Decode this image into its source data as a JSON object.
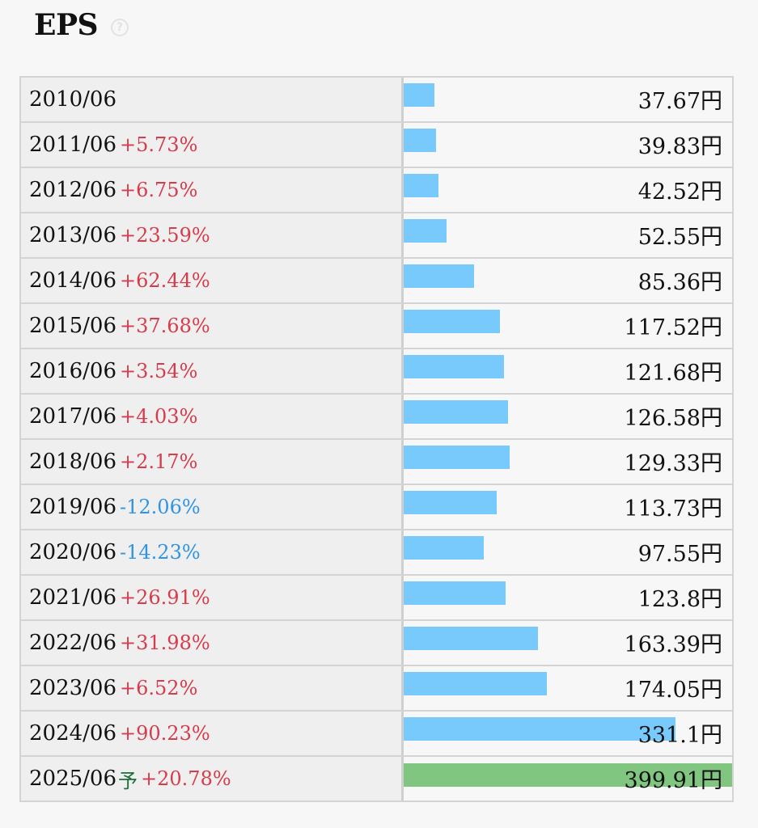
{
  "header": {
    "title": "EPS",
    "help_icon": "question-circle-icon"
  },
  "colors": {
    "bar": "#78cafd",
    "forecast_bar": "#80c680",
    "up": "#d83b4b",
    "down": "#2f94e6"
  },
  "chart_data": {
    "type": "bar",
    "orientation": "horizontal",
    "title": "EPS",
    "categories": [
      "2010/06",
      "2011/06",
      "2012/06",
      "2013/06",
      "2014/06",
      "2015/06",
      "2016/06",
      "2017/06",
      "2018/06",
      "2019/06",
      "2020/06",
      "2021/06",
      "2022/06",
      "2023/06",
      "2024/06",
      "2025/06"
    ],
    "values": [
      37.67,
      39.83,
      42.52,
      52.55,
      85.36,
      117.52,
      121.68,
      126.58,
      129.33,
      113.73,
      97.55,
      123.8,
      163.39,
      174.05,
      331.1,
      399.91
    ],
    "value_labels": [
      "37.67円",
      "39.83円",
      "42.52円",
      "52.55円",
      "85.36円",
      "117.52円",
      "121.68円",
      "126.58円",
      "129.33円",
      "113.73円",
      "97.55円",
      "123.8円",
      "163.39円",
      "174.05円",
      "331.1円",
      "399.91円"
    ],
    "changes": [
      "",
      "+5.73%",
      "+6.75%",
      "+23.59%",
      "+62.44%",
      "+37.68%",
      "+3.54%",
      "+4.03%",
      "+2.17%",
      "-12.06%",
      "-14.23%",
      "+26.91%",
      "+31.98%",
      "+6.52%",
      "+90.23%",
      "+20.78%"
    ],
    "forecast": [
      false,
      false,
      false,
      false,
      false,
      false,
      false,
      false,
      false,
      false,
      false,
      false,
      false,
      false,
      false,
      true
    ],
    "forecast_mark": "予",
    "xlim": [
      0,
      399.91
    ]
  }
}
